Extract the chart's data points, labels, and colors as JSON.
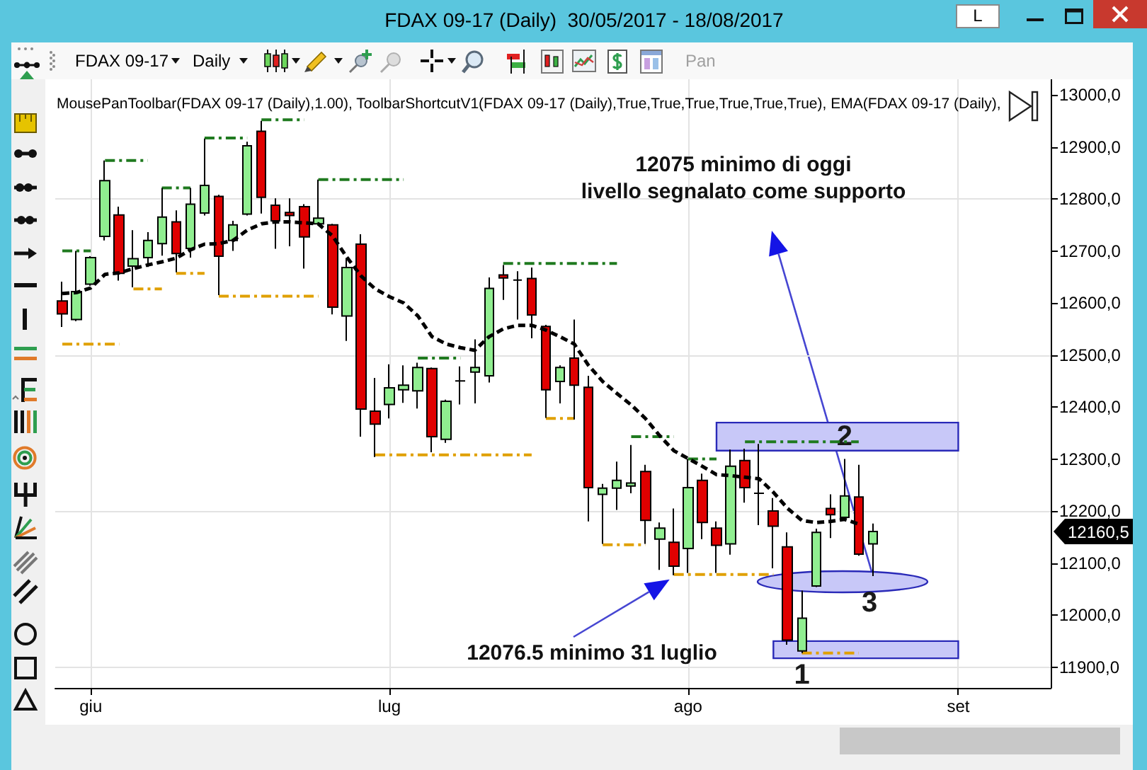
{
  "chart_data": {
    "type": "candlestick",
    "title": "FDAX 09-17 (Daily)  30/05/2017 - 18/08/2017",
    "subtitle": "MousePanToolbar(FDAX 09-17 (Daily),1.00), ToolbarShortcutV1(FDAX 09-17 (Daily),True,True,True,True,True,True), EMA(FDAX 09-17 (Daily),",
    "categories": [
      null,
      null,
      "giu",
      null,
      null,
      null,
      null,
      null,
      null,
      null,
      null,
      null,
      null,
      null,
      null,
      null,
      null,
      null,
      null,
      null,
      null,
      null,
      null,
      "lug",
      null,
      null,
      null,
      null,
      null,
      null,
      null,
      null,
      null,
      null,
      null,
      null,
      null,
      null,
      null,
      null,
      null,
      null,
      null,
      null,
      "ago",
      null,
      null,
      null,
      null,
      null,
      null,
      null,
      null,
      null,
      null,
      null,
      null,
      null,
      null,
      null,
      null,
      null,
      null,
      "set",
      null,
      null,
      null,
      null,
      null,
      null
    ],
    "ohlc": [
      [
        12604,
        12641,
        12554,
        12579
      ],
      [
        12568,
        12700,
        12565,
        12622
      ],
      [
        12636,
        12690,
        12633,
        12687
      ],
      [
        12728,
        12874,
        12720,
        12835
      ],
      [
        12769,
        12785,
        12643,
        12657
      ],
      [
        12671,
        12740,
        12630,
        12685
      ],
      [
        12687,
        12736,
        12669,
        12720
      ],
      [
        12714,
        12821,
        12691,
        12765
      ],
      [
        12756,
        12778,
        12659,
        12695
      ],
      [
        12705,
        12821,
        12687,
        12790
      ],
      [
        12773,
        12916,
        12768,
        12826
      ],
      [
        12805,
        12808,
        12615,
        12690
      ],
      [
        12720,
        12758,
        12700,
        12750
      ],
      [
        12771,
        12910,
        12768,
        12902
      ],
      [
        12930,
        12950,
        12772,
        12803
      ],
      [
        12788,
        12801,
        12704,
        12758
      ],
      [
        12774,
        12801,
        12709,
        12768
      ],
      [
        12785,
        12790,
        12666,
        12727
      ],
      [
        12752,
        12837,
        12750,
        12763
      ],
      [
        12750,
        12752,
        12578,
        12592
      ],
      [
        12575,
        12686,
        12527,
        12668
      ],
      [
        12713,
        12732,
        12343,
        12396
      ],
      [
        12392,
        12456,
        12304,
        12367
      ],
      [
        12405,
        12482,
        12378,
        12437
      ],
      [
        12433,
        12480,
        12408,
        12442
      ],
      [
        12431,
        12485,
        12397,
        12476
      ],
      [
        12474,
        12476,
        12313,
        12343
      ],
      [
        12338,
        12414,
        12331,
        12411
      ],
      [
        12450,
        12478,
        12405,
        12450
      ],
      [
        12467,
        12530,
        12407,
        12476
      ],
      [
        12460,
        12649,
        12447,
        12628
      ],
      [
        12654,
        12673,
        12606,
        12648
      ],
      [
        12644,
        12661,
        12568,
        12644
      ],
      [
        12647,
        12668,
        12532,
        12577
      ],
      [
        12555,
        12558,
        12379,
        12433
      ],
      [
        12449,
        12480,
        12407,
        12476
      ],
      [
        12494,
        12568,
        12376,
        12442
      ],
      [
        12438,
        12460,
        12180,
        12245
      ],
      [
        12232,
        12252,
        12137,
        12244
      ],
      [
        12244,
        12295,
        12202,
        12259
      ],
      [
        12248,
        12327,
        12234,
        12254
      ],
      [
        12276,
        12289,
        12137,
        12182
      ],
      [
        12146,
        12178,
        12087,
        12167
      ],
      [
        12140,
        12205,
        12076.5,
        12094
      ],
      [
        12128,
        12300,
        12081,
        12245
      ],
      [
        12259,
        12272,
        12146,
        12178
      ],
      [
        12167,
        12180,
        12081,
        12134
      ],
      [
        12137,
        12318,
        12116,
        12286
      ],
      [
        12297,
        12320,
        12216,
        12245
      ],
      [
        12234,
        12329,
        12173,
        12234
      ],
      [
        12200,
        12225,
        12090,
        12171
      ],
      [
        12131,
        12159,
        11943,
        11952
      ],
      [
        11931,
        12047,
        11927,
        11994
      ],
      [
        12056,
        12166,
        12054,
        12159
      ],
      [
        12205,
        12232,
        12148,
        12193
      ],
      [
        12188,
        12300,
        12186,
        12229
      ],
      [
        12227,
        12289,
        12114,
        12117
      ],
      [
        12137,
        12176,
        12075,
        12160.5
      ],
      null,
      null,
      null,
      null,
      null,
      null,
      null,
      null,
      null,
      null,
      null,
      null
    ],
    "colors": [
      "#e00000",
      "#90ee90",
      "#90ee90",
      "#90ee90",
      "#e00000",
      "#90ee90",
      "#90ee90",
      "#90ee90",
      "#e00000",
      "#90ee90",
      "#90ee90",
      "#e00000",
      "#90ee90",
      "#90ee90",
      "#e00000",
      "#e00000",
      "#e00000",
      "#e00000",
      "#90ee90",
      "#e00000",
      "#90ee90",
      "#e00000",
      "#e00000",
      "#90ee90",
      "#90ee90",
      "#90ee90",
      "#e00000",
      "#90ee90",
      "#000000",
      "#90ee90",
      "#90ee90",
      "#e00000",
      "#000000",
      "#e00000",
      "#e00000",
      "#90ee90",
      "#e00000",
      "#e00000",
      "#90ee90",
      "#90ee90",
      "#90ee90",
      "#e00000",
      "#90ee90",
      "#e00000",
      "#90ee90",
      "#e00000",
      "#e00000",
      "#90ee90",
      "#e00000",
      "#000000",
      "#e00000",
      "#e00000",
      "#90ee90",
      "#90ee90",
      "#e00000",
      "#90ee90",
      "#e00000",
      "#90ee90",
      null,
      null,
      null,
      null,
      null,
      null,
      null,
      null,
      null,
      null,
      null,
      null
    ],
    "series": [
      {
        "type": "line",
        "color": "#000000",
        "line_style": "dashed",
        "values": [
          12618,
          12620,
          12629,
          12655,
          12658,
          12666,
          12673,
          12679,
          12686,
          12702,
          12713,
          12714,
          12720,
          12740,
          12752,
          12756,
          12756,
          12754,
          12752,
          12729,
          12688,
          12652,
          12627,
          12612,
          12600,
          12575,
          12535,
          12521,
          12514,
          12509,
          12535,
          12550,
          12557,
          12557,
          12548,
          12535,
          12521,
          12480,
          12449,
          12426,
          12404,
          12378,
          12345,
          12316,
          12301,
          12286,
          12270,
          12268,
          12265,
          12262,
          12236,
          12205,
          12182,
          12178,
          12180,
          12184,
          12175,
          null,
          null,
          null,
          null,
          null,
          null,
          null,
          null,
          null,
          null,
          null,
          null,
          null
        ]
      },
      {
        "type": "line",
        "color": "#1f7a1f",
        "line_style": "dashdot",
        "values": [
          12700,
          12700,
          12700,
          null,
          null,
          null,
          null,
          12821,
          12821,
          12821,
          null,
          null,
          null,
          null,
          12952,
          12952,
          12952,
          12952,
          null,
          null,
          null,
          null,
          null,
          null,
          null,
          12494,
          12494,
          12494,
          12494,
          null,
          null,
          null,
          null,
          null,
          null,
          null,
          null,
          null,
          null,
          null,
          12343,
          12343,
          12343,
          12343,
          null,
          null,
          null,
          null,
          12333,
          12333,
          12333,
          12333,
          12333,
          12333,
          12333,
          12333,
          12333,
          null,
          null,
          null,
          null,
          null,
          null,
          null,
          null,
          null,
          null,
          null,
          null,
          null
        ]
      },
      {
        "type": "line",
        "color": "#1f7a1f",
        "line_style": "dashdot",
        "values": [
          null,
          null,
          null,
          12874,
          12874,
          12874,
          12874,
          null,
          null,
          null,
          12917,
          12917,
          12917,
          12917,
          null,
          null,
          null,
          null,
          12837,
          12837,
          12837,
          12837,
          12837,
          12837,
          12837,
          null,
          null,
          null,
          null,
          null,
          null,
          12676,
          12676,
          12676,
          12676,
          12676,
          12676,
          12676,
          12676,
          12676,
          null,
          null,
          null,
          null,
          12300,
          12300,
          12300,
          null,
          null,
          null,
          null,
          null,
          null,
          null,
          null,
          null,
          null,
          null,
          null,
          null,
          null,
          null,
          null,
          null,
          null,
          null,
          null,
          null,
          null,
          null
        ]
      },
      {
        "type": "line",
        "color": "#e0a000",
        "line_style": "dashdot",
        "values": [
          12521,
          12521,
          12521,
          12521,
          12521,
          null,
          null,
          null,
          12657,
          12657,
          12657,
          null,
          null,
          null,
          null,
          null,
          null,
          null,
          null,
          null,
          null,
          null,
          12308,
          12308,
          12308,
          12308,
          12308,
          12308,
          12308,
          12308,
          12308,
          12308,
          12308,
          12308,
          null,
          null,
          null,
          null,
          12135,
          12135,
          12135,
          12135,
          null,
          null,
          null,
          null,
          null,
          null,
          null,
          null,
          null,
          null,
          11927,
          11927,
          11927,
          11927,
          11927,
          null,
          null,
          null,
          null,
          null,
          null,
          null,
          null,
          null,
          null,
          null,
          null,
          null
        ]
      },
      {
        "type": "line",
        "color": "#e0a000",
        "line_style": "dashdot",
        "values": [
          null,
          null,
          null,
          null,
          null,
          12627,
          12627,
          12627,
          null,
          null,
          null,
          12613,
          12613,
          12613,
          12613,
          12613,
          12613,
          12613,
          12613,
          null,
          null,
          null,
          null,
          null,
          null,
          null,
          null,
          null,
          null,
          null,
          null,
          null,
          null,
          null,
          12378,
          12378,
          12378,
          null,
          null,
          null,
          null,
          null,
          null,
          12078,
          12078,
          12078,
          12078,
          12078,
          12078,
          12078,
          12078,
          null,
          null,
          null,
          null,
          null,
          null,
          null,
          null,
          null,
          null,
          null,
          null,
          null,
          null,
          null,
          null,
          null,
          null,
          null
        ]
      }
    ],
    "ylim": [
      11860,
      13030
    ],
    "yticks": [
      {
        "value": 11900,
        "label": "11900,0"
      },
      {
        "value": 12000,
        "label": "12000,0"
      },
      {
        "value": 12100,
        "label": "12100,0"
      },
      {
        "value": 12200,
        "label": "12200,0"
      },
      {
        "value": 12300,
        "label": "12300,0"
      },
      {
        "value": 12400,
        "label": "12400,0"
      },
      {
        "value": 12500,
        "label": "12500,0"
      },
      {
        "value": 12600,
        "label": "12600,0"
      },
      {
        "value": 12700,
        "label": "12700,0"
      },
      {
        "value": 12800,
        "label": "12800,0"
      },
      {
        "value": 12900,
        "label": "12900,0"
      },
      {
        "value": 13000,
        "label": "13000,0"
      }
    ],
    "grid": true,
    "bands": [
      {
        "axis": "y",
        "from": 11917,
        "to": 11950,
        "label": "1",
        "color": "#c8c8f8"
      },
      {
        "axis": "y",
        "from": 12316,
        "to": 12370,
        "label": "2",
        "color": "#c8c8f8"
      }
    ],
    "annotations": [
      "12075 minimo di oggi\nlivello segnalato come supporto",
      "12076.5 minimo 31 luglio",
      "12160,5",
      "3",
      "L",
      "FDAX 09-17",
      "Daily",
      "Pan"
    ]
  }
}
